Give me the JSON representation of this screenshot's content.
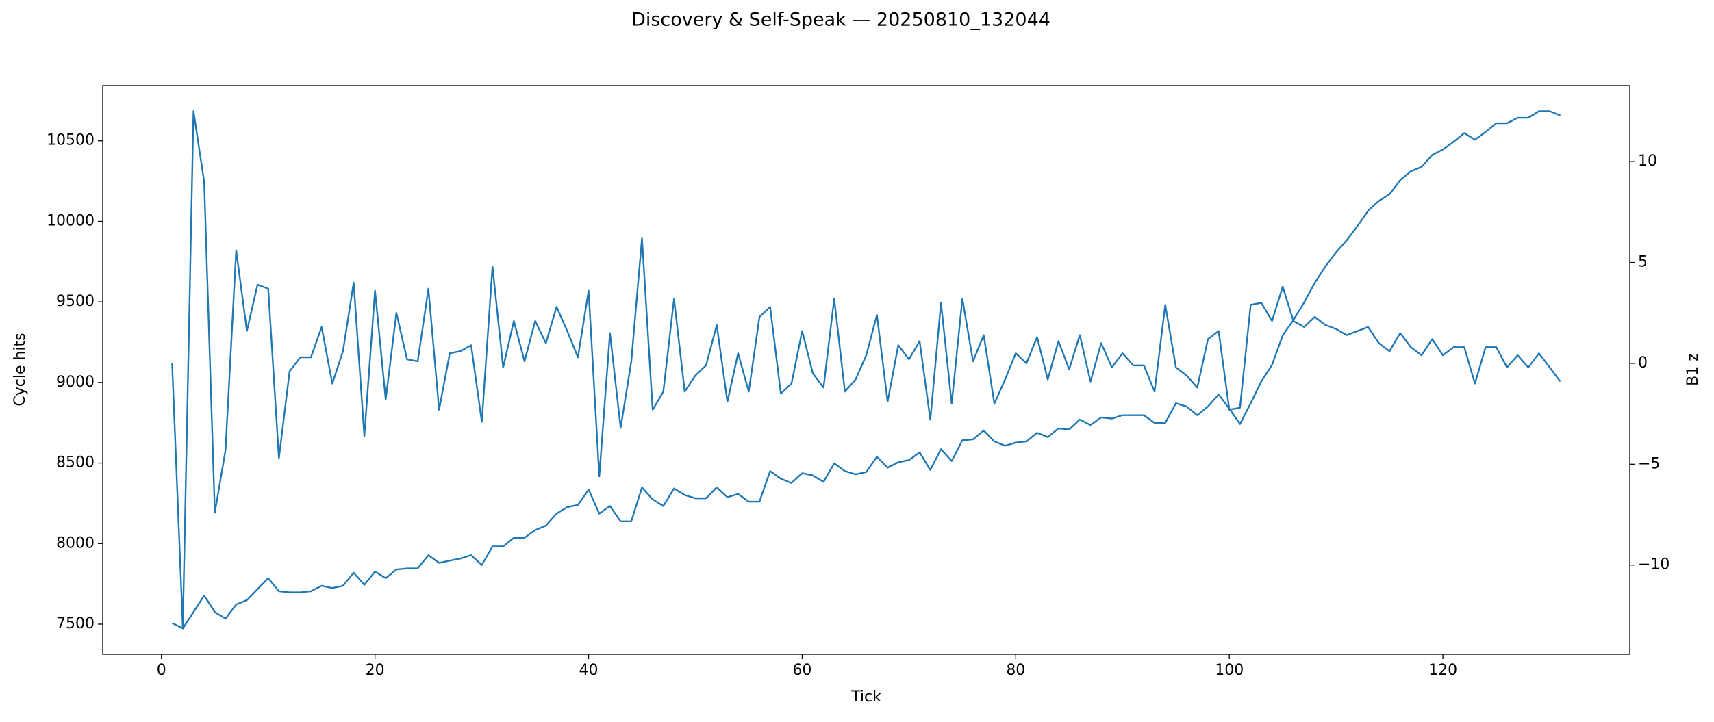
{
  "chart_data": {
    "type": "line",
    "title": "Discovery & Self-Speak — 20250810_132044",
    "x_label": "Tick",
    "y_label": "Cycle hits",
    "y2_label": "B1 z",
    "x": [
      1,
      2,
      3,
      4,
      5,
      6,
      7,
      8,
      9,
      10,
      11,
      12,
      13,
      14,
      15,
      16,
      17,
      18,
      19,
      20,
      21,
      22,
      23,
      24,
      25,
      26,
      27,
      28,
      29,
      30,
      31,
      32,
      33,
      34,
      35,
      36,
      37,
      38,
      39,
      40,
      41,
      42,
      43,
      44,
      45,
      46,
      47,
      48,
      49,
      50,
      51,
      52,
      53,
      54,
      55,
      56,
      57,
      58,
      59,
      60,
      61,
      62,
      63,
      64,
      65,
      66,
      67,
      68,
      69,
      70,
      71,
      72,
      73,
      74,
      75,
      76,
      77,
      78,
      79,
      80,
      81,
      82,
      83,
      84,
      85,
      86,
      87,
      88,
      89,
      90,
      91,
      92,
      93,
      94,
      95,
      96,
      97,
      98,
      99,
      100,
      101,
      102,
      103,
      104,
      105,
      106,
      107,
      108,
      109,
      110,
      111,
      112,
      113,
      114,
      115,
      116,
      117,
      118,
      119,
      120,
      121,
      122,
      123,
      124,
      125,
      126,
      127,
      128,
      129,
      130,
      131
    ],
    "series": [
      {
        "name": "Cycle hits",
        "color": "#1f77b4",
        "axis": "y",
        "values": [
          7507,
          7473,
          7575,
          7677,
          7575,
          7534,
          7622,
          7649,
          7717,
          7785,
          7704,
          7697,
          7697,
          7704,
          7738,
          7724,
          7738,
          7819,
          7744,
          7826,
          7785,
          7839,
          7846,
          7846,
          7928,
          7880,
          7894,
          7907,
          7928,
          7867,
          7982,
          7982,
          8036,
          8036,
          8084,
          8111,
          8186,
          8226,
          8240,
          8335,
          8186,
          8233,
          8138,
          8138,
          8349,
          8274,
          8233,
          8342,
          8301,
          8281,
          8281,
          8349,
          8288,
          8308,
          8260,
          8260,
          8450,
          8403,
          8376,
          8437,
          8423,
          8383,
          8498,
          8450,
          8430,
          8444,
          8539,
          8471,
          8505,
          8518,
          8566,
          8457,
          8586,
          8512,
          8641,
          8647,
          8702,
          8634,
          8607,
          8627,
          8634,
          8688,
          8661,
          8715,
          8708,
          8770,
          8736,
          8783,
          8776,
          8797,
          8797,
          8797,
          8749,
          8749,
          8871,
          8851,
          8797,
          8851,
          8926,
          8837,
          8742,
          8871,
          9007,
          9109,
          9292,
          9387,
          9496,
          9618,
          9721,
          9808,
          9883,
          9971,
          10066,
          10127,
          10168,
          10256,
          10311,
          10338,
          10412,
          10446,
          10494,
          10548,
          10507,
          10555,
          10609,
          10609,
          10643,
          10643,
          10684,
          10684,
          10657
        ]
      },
      {
        "name": "B1 z",
        "color": "#1f77b4",
        "axis": "y2",
        "values": [
          0,
          -13.1,
          12.5,
          9.0,
          -7.4,
          -4.3,
          5.6,
          1.6,
          3.9,
          3.7,
          -4.7,
          -0.4,
          0.3,
          0.3,
          1.8,
          -1.0,
          0.6,
          4.0,
          -3.6,
          3.6,
          -1.8,
          2.5,
          0.2,
          0.1,
          3.7,
          -2.3,
          0.5,
          0.6,
          0.9,
          -2.9,
          4.8,
          -0.2,
          2.1,
          0.1,
          2.1,
          1.0,
          2.8,
          1.6,
          0.3,
          3.6,
          -5.6,
          1.5,
          -3.2,
          0.1,
          6.2,
          -2.3,
          -1.4,
          3.2,
          -1.4,
          -0.6,
          -0.1,
          1.9,
          -1.9,
          0.5,
          -1.4,
          2.3,
          2.8,
          -1.5,
          -1.0,
          1.6,
          -0.5,
          -1.2,
          3.2,
          -1.4,
          -0.8,
          0.4,
          2.4,
          -1.9,
          0.9,
          0.2,
          1.1,
          -2.8,
          3.0,
          -2.0,
          3.2,
          0.1,
          1.4,
          -2.0,
          -0.8,
          0.5,
          0,
          1.3,
          -0.8,
          1.1,
          -0.3,
          1.4,
          -0.9,
          1.0,
          -0.2,
          0.5,
          -0.1,
          -0.1,
          -1.4,
          2.9,
          -0.2,
          -0.6,
          -1.2,
          1.2,
          1.6,
          -2.3,
          -2.2,
          2.9,
          3.0,
          2.1,
          3.8,
          2.1,
          1.8,
          2.3,
          1.9,
          1.7,
          1.4,
          1.6,
          1.8,
          1.0,
          0.6,
          1.5,
          0.8,
          0.4,
          1.2,
          0.4,
          0.8,
          0.8,
          -1.0,
          0.8,
          0.8,
          -0.2,
          0.4,
          -0.2,
          0.5,
          -0.2,
          -0.9
        ]
      }
    ],
    "xlim": [
      -5.5,
      137.5
    ],
    "xticks": [
      0,
      20,
      40,
      60,
      80,
      100,
      120
    ],
    "ylim": [
      7313,
      10843
    ],
    "yticks": [
      7500,
      8000,
      8500,
      9000,
      9500,
      10000,
      10500
    ],
    "y2lim": [
      -14.42,
      13.77
    ],
    "y2ticks": [
      {
        "value": -10,
        "label": "−10"
      },
      {
        "value": -5,
        "label": "−5"
      },
      0,
      5,
      10
    ],
    "grid": false
  }
}
